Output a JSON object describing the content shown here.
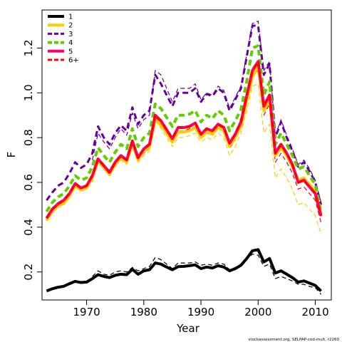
{
  "chart_data": {
    "type": "line",
    "title": "",
    "xlabel": "Year",
    "ylabel": "F",
    "xlim": [
      1962.2,
      2012.8
    ],
    "ylim": [
      0.075,
      1.37
    ],
    "x_ticks": [
      "1970",
      "1980",
      "1990",
      "2000",
      "2010"
    ],
    "y_ticks": [
      "0.2",
      "0.4",
      "0.6",
      "0.8",
      "1.0",
      "1.2"
    ],
    "legend_position": "top-left",
    "credit": "stockassessment.org, SELPAP-cod-mult, r2260",
    "x": [
      1963,
      1964,
      1965,
      1966,
      1967,
      1968,
      1969,
      1970,
      1971,
      1972,
      1973,
      1974,
      1975,
      1976,
      1977,
      1978,
      1979,
      1980,
      1981,
      1982,
      1983,
      1984,
      1985,
      1986,
      1987,
      1988,
      1989,
      1990,
      1991,
      1992,
      1993,
      1994,
      1995,
      1996,
      1997,
      1998,
      1999,
      2000,
      2001,
      2002,
      2003,
      2004,
      2005,
      2006,
      2007,
      2008,
      2009,
      2010,
      2011
    ],
    "series": [
      {
        "name": "1",
        "color": "#000000",
        "dash": "solid",
        "width": 4,
        "values": [
          0.115,
          0.125,
          0.132,
          0.136,
          0.148,
          0.158,
          0.153,
          0.155,
          0.17,
          0.188,
          0.18,
          0.175,
          0.185,
          0.19,
          0.188,
          0.212,
          0.19,
          0.205,
          0.21,
          0.24,
          0.235,
          0.222,
          0.21,
          0.224,
          0.225,
          0.228,
          0.232,
          0.215,
          0.222,
          0.218,
          0.228,
          0.222,
          0.205,
          0.215,
          0.23,
          0.26,
          0.295,
          0.3,
          0.245,
          0.26,
          0.195,
          0.205,
          0.19,
          0.175,
          0.155,
          0.16,
          0.15,
          0.14,
          0.115
        ]
      },
      {
        "name": "2",
        "color": "#FFCC00",
        "dash": "solid",
        "width": 4,
        "values": [
          0.43,
          0.47,
          0.495,
          0.505,
          0.54,
          0.585,
          0.565,
          0.575,
          0.62,
          0.695,
          0.665,
          0.635,
          0.68,
          0.71,
          0.69,
          0.77,
          0.7,
          0.74,
          0.755,
          0.88,
          0.855,
          0.82,
          0.78,
          0.825,
          0.825,
          0.83,
          0.845,
          0.8,
          0.825,
          0.815,
          0.845,
          0.83,
          0.76,
          0.8,
          0.85,
          0.96,
          1.07,
          1.12,
          0.92,
          0.97,
          0.72,
          0.755,
          0.72,
          0.67,
          0.61,
          0.62,
          0.59,
          0.56,
          0.46
        ]
      },
      {
        "name": "3",
        "color": "#660099",
        "dash": "dash",
        "width": 3,
        "values": [
          0.52,
          0.555,
          0.585,
          0.6,
          0.64,
          0.69,
          0.665,
          0.68,
          0.73,
          0.85,
          0.8,
          0.77,
          0.82,
          0.855,
          0.83,
          0.935,
          0.86,
          0.9,
          0.92,
          1.08,
          1.04,
          0.99,
          0.94,
          1.0,
          1.0,
          1.0,
          1.02,
          0.96,
          0.995,
          0.985,
          1.02,
          1.0,
          0.92,
          0.97,
          1.02,
          1.16,
          1.3,
          1.3,
          1.08,
          1.13,
          0.8,
          0.87,
          0.8,
          0.74,
          0.67,
          0.69,
          0.65,
          0.6,
          0.5
        ]
      },
      {
        "name": "4",
        "color": "#66CC00",
        "dash": "dash",
        "width": 4,
        "values": [
          0.47,
          0.51,
          0.535,
          0.55,
          0.585,
          0.63,
          0.61,
          0.62,
          0.67,
          0.755,
          0.72,
          0.69,
          0.735,
          0.77,
          0.75,
          0.84,
          0.76,
          0.8,
          0.82,
          0.95,
          0.93,
          0.89,
          0.85,
          0.9,
          0.9,
          0.905,
          0.92,
          0.87,
          0.9,
          0.885,
          0.92,
          0.9,
          0.83,
          0.875,
          0.925,
          1.05,
          1.2,
          1.21,
          0.99,
          1.05,
          0.77,
          0.82,
          0.77,
          0.72,
          0.66,
          0.67,
          0.63,
          0.59,
          0.47
        ]
      },
      {
        "name": "5",
        "color": "#FF0066",
        "dash": "solid",
        "width": 4,
        "values": [
          0.44,
          0.48,
          0.505,
          0.52,
          0.55,
          0.595,
          0.575,
          0.585,
          0.63,
          0.705,
          0.675,
          0.645,
          0.69,
          0.72,
          0.7,
          0.785,
          0.71,
          0.75,
          0.77,
          0.9,
          0.875,
          0.835,
          0.795,
          0.845,
          0.845,
          0.85,
          0.865,
          0.815,
          0.84,
          0.83,
          0.86,
          0.845,
          0.775,
          0.815,
          0.87,
          0.985,
          1.1,
          1.14,
          0.94,
          0.99,
          0.73,
          0.77,
          0.73,
          0.68,
          0.6,
          0.61,
          0.58,
          0.55,
          0.45
        ]
      },
      {
        "name": "6+",
        "color": "#FF0000",
        "dash": "dash",
        "width": 3,
        "values": [
          0.44,
          0.48,
          0.505,
          0.52,
          0.55,
          0.595,
          0.575,
          0.585,
          0.63,
          0.705,
          0.675,
          0.645,
          0.69,
          0.72,
          0.7,
          0.785,
          0.71,
          0.75,
          0.77,
          0.9,
          0.875,
          0.835,
          0.795,
          0.845,
          0.845,
          0.85,
          0.865,
          0.815,
          0.84,
          0.83,
          0.86,
          0.845,
          0.775,
          0.815,
          0.87,
          0.985,
          1.1,
          1.14,
          0.94,
          0.99,
          0.73,
          0.77,
          0.73,
          0.68,
          0.6,
          0.61,
          0.58,
          0.55,
          0.45
        ]
      }
    ],
    "retro_lines": [
      {
        "name": "",
        "color": "#000000",
        "dash": "dash",
        "width": 1.2,
        "values": [
          null,
          null,
          null,
          null,
          null,
          null,
          null,
          null,
          0.18,
          0.205,
          0.19,
          0.185,
          0.2,
          0.205,
          0.2,
          0.22,
          0.205,
          0.215,
          0.225,
          0.265,
          0.255,
          0.235,
          0.215,
          0.24,
          0.24,
          0.24,
          0.245,
          0.23,
          0.235,
          0.23,
          0.24,
          0.235,
          0.21,
          0.22,
          0.235,
          0.255,
          0.28,
          0.275,
          0.225,
          0.235,
          0.17,
          0.18,
          0.17,
          0.16,
          0.145,
          0.145,
          0.135,
          0.13,
          0.1
        ]
      },
      {
        "name": "",
        "color": "#FFCC00",
        "dash": "dash",
        "width": 1.2,
        "values": [
          null,
          null,
          null,
          null,
          null,
          null,
          null,
          null,
          0.6,
          0.69,
          0.66,
          0.63,
          0.67,
          0.7,
          0.68,
          0.76,
          0.69,
          0.72,
          0.74,
          0.88,
          0.84,
          0.8,
          0.76,
          0.8,
          0.8,
          0.81,
          0.82,
          0.78,
          0.8,
          0.79,
          0.82,
          0.8,
          0.72,
          0.76,
          0.82,
          0.92,
          1.03,
          1.04,
          0.82,
          0.86,
          0.62,
          0.66,
          0.62,
          0.57,
          0.5,
          0.51,
          0.48,
          0.45,
          0.37
        ]
      },
      {
        "name": "",
        "color": "#660099",
        "dash": "dash",
        "width": 1.2,
        "values": [
          null,
          null,
          null,
          null,
          null,
          null,
          null,
          null,
          0.7,
          0.82,
          0.78,
          0.75,
          0.8,
          0.84,
          0.81,
          0.91,
          0.84,
          0.88,
          0.9,
          1.1,
          1.08,
          1.02,
          0.96,
          1.02,
          1.02,
          1.02,
          1.04,
          0.97,
          1.0,
          0.99,
          1.03,
          1.01,
          0.93,
          0.98,
          1.03,
          1.17,
          1.31,
          1.32,
          1.1,
          1.14,
          0.81,
          0.88,
          0.81,
          0.75,
          0.68,
          0.7,
          0.66,
          0.61,
          0.51
        ]
      },
      {
        "name": "",
        "color": "#FF0000",
        "dash": "dash",
        "width": 1.2,
        "values": [
          null,
          null,
          null,
          null,
          null,
          null,
          null,
          null,
          0.61,
          0.7,
          0.67,
          0.64,
          0.68,
          0.71,
          0.69,
          0.77,
          0.7,
          0.73,
          0.75,
          0.89,
          0.86,
          0.82,
          0.78,
          0.83,
          0.83,
          0.84,
          0.85,
          0.8,
          0.82,
          0.81,
          0.84,
          0.83,
          0.75,
          0.79,
          0.85,
          0.96,
          1.08,
          1.1,
          0.9,
          0.95,
          0.69,
          0.73,
          0.69,
          0.64,
          0.57,
          0.58,
          0.55,
          0.52,
          0.42
        ]
      }
    ]
  }
}
